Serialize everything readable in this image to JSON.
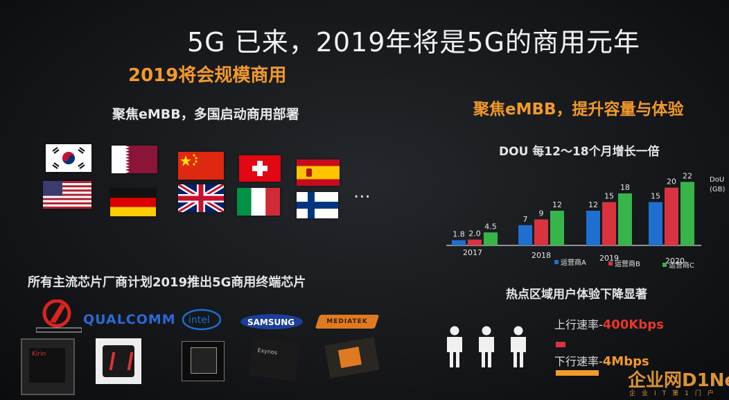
{
  "slide": {
    "title": "5G 已来，2019年将是5G的商用元年",
    "left_heading": "2019将会规模商用",
    "left_focus": "聚焦eMBB，多国启动商用部署",
    "ellipsis": "...",
    "right_heading": "聚焦eMBB，提升容量与体验",
    "chips_heading": "所有主流芯片厂商计划2019推出5G商用终端芯片",
    "hotspot_heading": "热点区域用户体验下降显著",
    "watermark": "企业网D1Net",
    "watermark_sub": "企业IT第1门户"
  },
  "flags": [
    "korea",
    "qatar",
    "china",
    "switzerland",
    "spain",
    "usa",
    "germany",
    "uk",
    "italy",
    "finland"
  ],
  "vendors": [
    {
      "name": "HISILICON",
      "icon": "hisilicon-logo"
    },
    {
      "name": "QUALCOMM",
      "icon": "qualcomm-logo"
    },
    {
      "name": "intel",
      "icon": "intel-logo"
    },
    {
      "name": "SAMSUNG",
      "icon": "samsung-logo"
    },
    {
      "name": "MEDIATEK",
      "icon": "mediatek-logo"
    }
  ],
  "chip_labels": {
    "hisilicon": "Kirin",
    "samsung": "Exynos"
  },
  "speeds": {
    "up_label": "上行速率-",
    "up_value": "400Kbps",
    "down_label": "下行速率-",
    "down_value": "4Mbps"
  },
  "colors": {
    "accent": "#f39a2b",
    "op_a": "#1f6fd0",
    "op_b": "#d8333f",
    "op_c": "#38b54a"
  },
  "chart_data": {
    "type": "bar",
    "title": "DOU 每12～18个月增长一倍",
    "ylabel": "DoU\n(GB)",
    "categories": [
      "2017",
      "2018",
      "2019",
      "2020"
    ],
    "series": [
      {
        "name": "运营商A",
        "values": [
          1.8,
          7,
          12,
          15
        ]
      },
      {
        "name": "运营商B",
        "values": [
          2.0,
          9,
          15,
          20
        ]
      },
      {
        "name": "运营商C",
        "values": [
          4.5,
          12,
          18,
          22
        ]
      }
    ],
    "value_labels": [
      [
        "1.8",
        "7",
        "12",
        "15"
      ],
      [
        "2.0",
        "9",
        "15",
        "20"
      ],
      [
        "4.5",
        "12",
        "18",
        "22"
      ]
    ],
    "ylim": [
      0,
      24
    ],
    "legend": "bottom-right"
  }
}
